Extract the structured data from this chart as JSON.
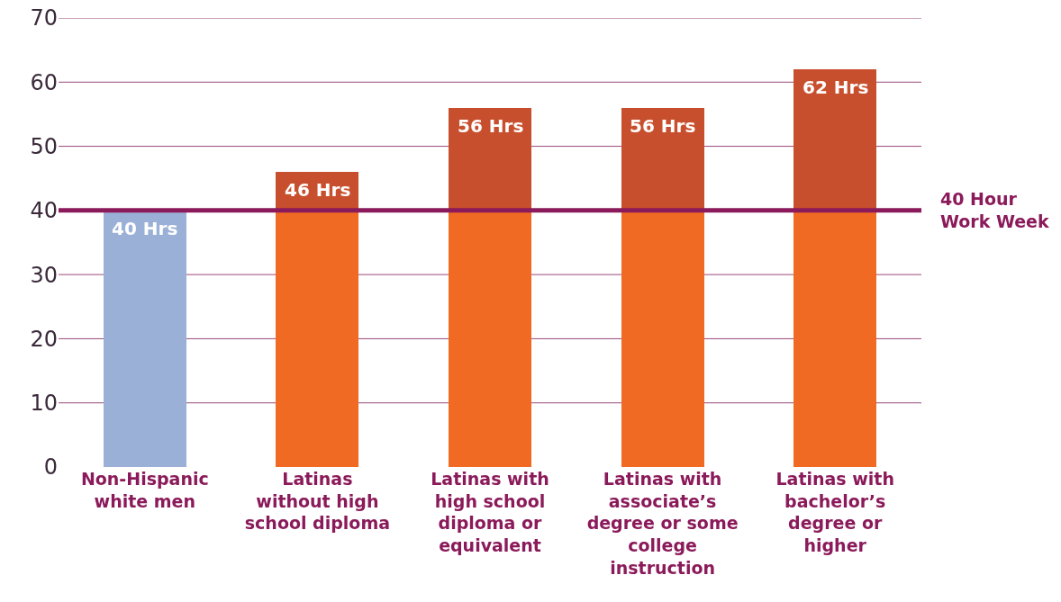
{
  "chart_data": {
    "type": "bar",
    "stacked": true,
    "categories": [
      "Non-Hispanic white men",
      "Latinas without high school diploma",
      "Latinas with high school diploma or equivalent",
      "Latinas with associate’s degree or some college instruction",
      "Latinas with bachelor’s degree or higher"
    ],
    "series": [
      {
        "colors": [
          "#9bb0d6",
          "#f06a23",
          "#f06a23",
          "#f06a23",
          "#f06a23"
        ],
        "values": [
          40,
          40,
          40,
          40,
          40
        ]
      },
      {
        "color": "#c84f2d",
        "values": [
          null,
          6,
          16,
          16,
          22
        ]
      }
    ],
    "totals": [
      "40 Hrs",
      "46 Hrs",
      "56 Hrs",
      "56 Hrs",
      "62 Hrs"
    ],
    "ylim": [
      0,
      70
    ],
    "yticks": [
      0,
      10,
      20,
      30,
      40,
      50,
      60,
      70
    ],
    "grid": "y",
    "ref_lines": [
      {
        "axis": "y",
        "value": 40,
        "label": "40 Hour Work Week",
        "color": "#8b1a5a"
      }
    ]
  }
}
